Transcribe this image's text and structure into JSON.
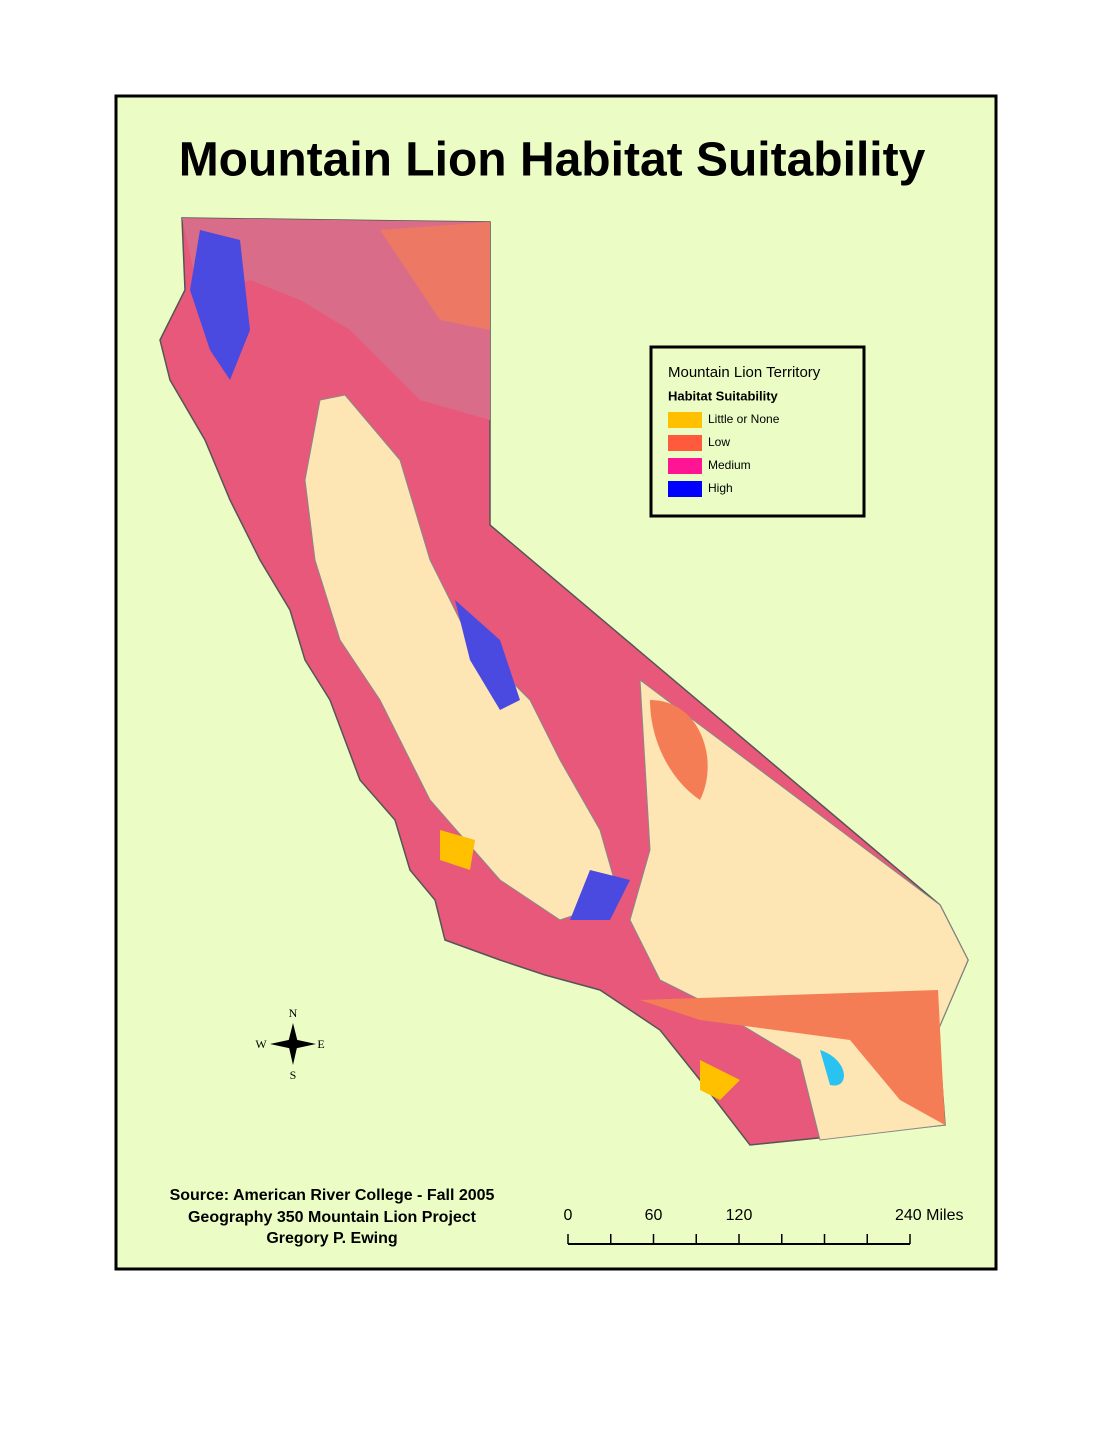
{
  "title": "Mountain Lion Habitat Suitability",
  "legend": {
    "title": "Mountain Lion Territory",
    "subtitle": "Habitat Suitability",
    "items": [
      {
        "label": "Little or None",
        "color": "#ffc000"
      },
      {
        "label": "Low",
        "color": "#ff5a3c"
      },
      {
        "label": "Medium",
        "color": "#ff1493"
      },
      {
        "label": "High",
        "color": "#0000ff"
      }
    ]
  },
  "compass": {
    "n": "N",
    "e": "E",
    "s": "S",
    "w": "W"
  },
  "source": [
    "Source:  American River College - Fall 2005",
    "Geography 350 Mountain Lion Project",
    "Gregory P. Ewing"
  ],
  "scale": {
    "ticks": [
      0,
      30,
      60,
      90,
      120,
      150,
      180,
      210,
      240
    ],
    "labels": [
      0,
      60,
      120,
      {
        "value": 240,
        "label": "240 Miles"
      }
    ]
  }
}
